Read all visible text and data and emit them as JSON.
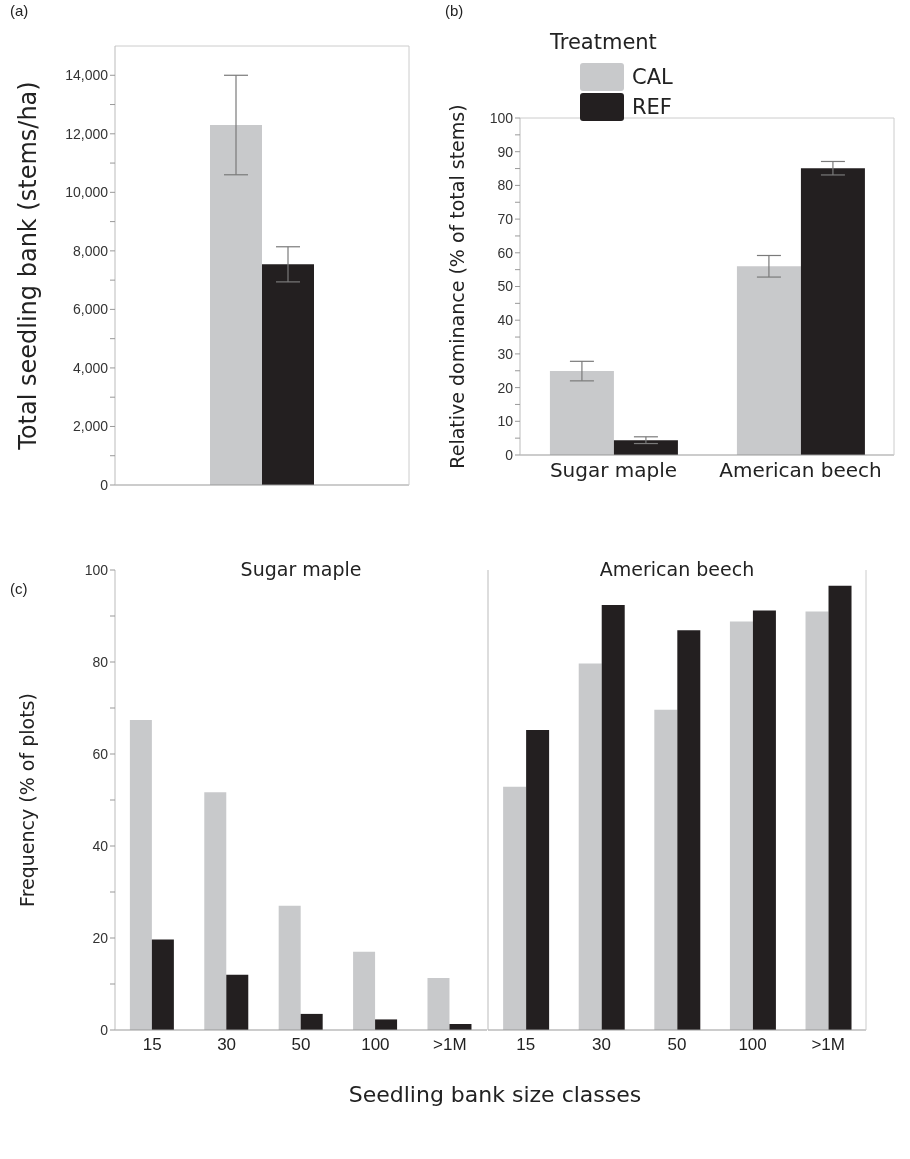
{
  "chart_data": [
    {
      "type": "bar",
      "title": "(a)",
      "ylabel": "Total seedling bank (stems/ha)",
      "categories": [
        null,
        null
      ],
      "tick_labels": "y",
      "ylim": [
        0,
        15000
      ],
      "yticks": [
        0,
        {
          "value": 1000,
          "label": null
        },
        {
          "value": 2000,
          "label": "2,000"
        },
        {
          "value": 3000,
          "label": null
        },
        {
          "value": 4000,
          "label": "4,000"
        },
        {
          "value": 5000,
          "label": null
        },
        {
          "value": 6000,
          "label": "6,000"
        },
        {
          "value": 7000,
          "label": null
        },
        {
          "value": 8000,
          "label": "8,000"
        },
        {
          "value": 9000,
          "label": null
        },
        {
          "value": 10000,
          "label": "10,000"
        },
        {
          "value": 11000,
          "label": null
        },
        {
          "value": 12000,
          "label": "12,000"
        },
        {
          "value": 13000,
          "label": null
        },
        {
          "value": 14000,
          "label": "14,000"
        }
      ],
      "values": [
        12300,
        7540
      ],
      "colors": [
        "#c8c9cb",
        "#231f20"
      ],
      "errors": [
        1700,
        600
      ]
    },
    {
      "type": "bar",
      "title": "(b)",
      "ylabel": "Relative dominance (% of total stems)",
      "categories": [
        "Sugar maple",
        "American beech"
      ],
      "legend": "top left",
      "legend_title": "Treatment",
      "ylim": [
        0,
        100
      ],
      "yticks": [
        0,
        {
          "value": 5,
          "label": null
        },
        10,
        {
          "value": 15,
          "label": null
        },
        20,
        {
          "value": 25,
          "label": null
        },
        30,
        {
          "value": 35,
          "label": null
        },
        40,
        {
          "value": 45,
          "label": null
        },
        50,
        {
          "value": 55,
          "label": null
        },
        60,
        {
          "value": 65,
          "label": null
        },
        70,
        {
          "value": 75,
          "label": null
        },
        80,
        {
          "value": 85,
          "label": null
        },
        90,
        {
          "value": 95,
          "label": null
        },
        100
      ],
      "series": [
        {
          "name": "CAL",
          "color": "#c8c9cb",
          "values": [
            24.9,
            56
          ],
          "errors": [
            2.9,
            3.2
          ]
        },
        {
          "name": "REF",
          "color": "#231f20",
          "values": [
            4.4,
            85.1
          ],
          "errors": [
            1.0,
            2.0
          ]
        }
      ]
    },
    {
      "type": "bar",
      "title": "Sugar maple",
      "xlabel": "Seedling bank size classes",
      "ylabel": "Frequency (% of plots)",
      "annotations": [
        "(c)"
      ],
      "categories": [
        "15",
        "30",
        "50",
        "100",
        ">1M"
      ],
      "ylim": [
        0,
        100
      ],
      "yticks": [
        0,
        {
          "value": 10,
          "label": null
        },
        20,
        {
          "value": 30,
          "label": null
        },
        40,
        {
          "value": 50,
          "label": null
        },
        60,
        {
          "value": 70,
          "label": null
        },
        80,
        {
          "value": 90,
          "label": null
        },
        100
      ],
      "series": [
        {
          "color": "#c8c9cb",
          "values": [
            67.4,
            51.7,
            27,
            17,
            11.3
          ]
        },
        {
          "color": "#231f20",
          "values": [
            19.7,
            12,
            3.5,
            2.3,
            1.3
          ]
        }
      ]
    },
    {
      "type": "bar",
      "title": "American beech",
      "categories": [
        "15",
        "30",
        "50",
        "100",
        ">1M"
      ],
      "tick_labels": "x",
      "ylim": [
        0,
        100
      ],
      "series": [
        {
          "color": "#c8c9cb",
          "values": [
            52.9,
            79.7,
            69.6,
            88.8,
            91
          ]
        },
        {
          "color": "#231f20",
          "values": [
            65.2,
            92.4,
            86.9,
            91.2,
            96.6
          ]
        }
      ]
    }
  ]
}
